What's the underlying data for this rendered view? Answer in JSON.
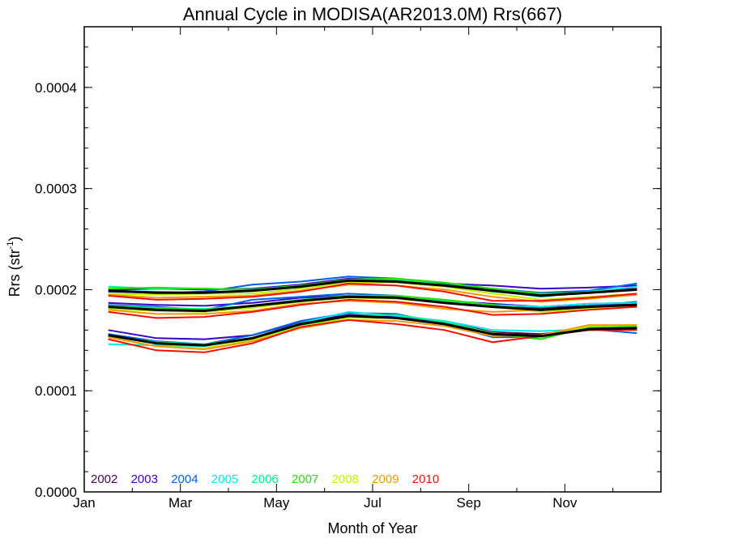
{
  "chart_data": {
    "type": "line",
    "title": "Annual Cycle in MODISA(AR2013.0M) Rrs(667)",
    "xlabel": "Month of Year",
    "ylabel_base": "Rrs (str",
    "ylabel_sup": "-1",
    "ylabel_close": ")",
    "xlim": [
      0,
      12
    ],
    "ylim": [
      0,
      0.00046
    ],
    "x_ticks": [
      {
        "value": 0,
        "label": "Jan"
      },
      {
        "value": 2,
        "label": "Mar"
      },
      {
        "value": 4,
        "label": "May"
      },
      {
        "value": 6,
        "label": "Jul"
      },
      {
        "value": 8,
        "label": "Sep"
      },
      {
        "value": 10,
        "label": "Nov"
      }
    ],
    "y_ticks": [
      {
        "value": 0,
        "label": "0.0000"
      },
      {
        "value": 0.0001,
        "label": "0.0001"
      },
      {
        "value": 0.0002,
        "label": "0.0002"
      },
      {
        "value": 0.0003,
        "label": "0.0003"
      },
      {
        "value": 0.0004,
        "label": "0.0004"
      }
    ],
    "legend": [
      {
        "name": "2002",
        "color": "#4b0055"
      },
      {
        "name": "2003",
        "color": "#3a00c8"
      },
      {
        "name": "2004",
        "color": "#0060e8"
      },
      {
        "name": "2005",
        "color": "#00e8e8"
      },
      {
        "name": "2006",
        "color": "#00f08a"
      },
      {
        "name": "2007",
        "color": "#22e000"
      },
      {
        "name": "2008",
        "color": "#c0f000"
      },
      {
        "name": "2009",
        "color": "#f09a00"
      },
      {
        "name": "2010",
        "color": "#f01000"
      }
    ],
    "x": [
      0.5,
      1.5,
      2.5,
      3.5,
      4.5,
      5.5,
      6.5,
      7.5,
      8.5,
      9.5,
      10.5,
      11.5
    ],
    "series": [
      {
        "year": "2002",
        "group": "high",
        "color": "#4b0055",
        "values": [
          null,
          null,
          null,
          null,
          null,
          0.00021,
          0.000208,
          0.000205,
          0.0002,
          0.000195,
          0.000198,
          0.000201
        ]
      },
      {
        "year": "2003",
        "group": "high",
        "color": "#3a00c8",
        "values": [
          0.0002,
          0.000201,
          0.0002,
          0.000201,
          0.000205,
          0.000211,
          0.00021,
          0.000206,
          0.000204,
          0.000201,
          0.000202,
          0.000204
        ]
      },
      {
        "year": "2004",
        "group": "high",
        "color": "#0060e8",
        "values": [
          0.000198,
          0.000197,
          0.000198,
          0.000205,
          0.000208,
          0.000213,
          0.000211,
          0.000204,
          0.000201,
          0.000197,
          0.000199,
          0.000206
        ]
      },
      {
        "year": "2005",
        "group": "high",
        "color": "#00e8e8",
        "values": [
          0.000199,
          0.000198,
          0.000197,
          0.000199,
          0.000204,
          0.000209,
          0.000208,
          0.000205,
          0.000199,
          0.000193,
          0.000198,
          0.000203
        ]
      },
      {
        "year": "2006",
        "group": "high",
        "color": "#00f08a",
        "values": [
          0.000203,
          0.000201,
          0.000201,
          0.0002,
          0.000204,
          0.000209,
          0.00021,
          0.000205,
          0.000198,
          0.000194,
          0.000198,
          0.0002
        ]
      },
      {
        "year": "2007",
        "group": "high",
        "color": "#22e000",
        "values": [
          0.000201,
          0.000202,
          0.000201,
          0.0002,
          0.000204,
          0.00021,
          0.000211,
          0.000207,
          0.000201,
          0.000196,
          0.000197,
          0.0002
        ]
      },
      {
        "year": "2008",
        "group": "high",
        "color": "#c0f000",
        "values": [
          0.000196,
          0.000195,
          0.000196,
          0.000196,
          0.000201,
          0.000207,
          0.000207,
          0.000203,
          0.000196,
          0.00019,
          0.000193,
          0.000196
        ]
      },
      {
        "year": "2009",
        "group": "high",
        "color": "#f09a00",
        "values": [
          0.000195,
          0.000192,
          0.000193,
          0.000194,
          0.000199,
          0.000205,
          0.000204,
          0.0002,
          0.000193,
          0.000188,
          0.000191,
          0.000195
        ]
      },
      {
        "year": "2010",
        "group": "high",
        "color": "#f01000",
        "values": [
          0.000194,
          0.00019,
          0.000191,
          0.000193,
          0.000198,
          0.000206,
          0.000204,
          0.000198,
          0.000189,
          0.000189,
          0.000192,
          0.000196
        ]
      },
      {
        "year": "2002",
        "group": "mid",
        "color": "#4b0055",
        "values": [
          null,
          null,
          null,
          null,
          null,
          0.000193,
          0.000192,
          0.000188,
          0.000185,
          0.000182,
          0.000184,
          0.000186
        ]
      },
      {
        "year": "2003",
        "group": "mid",
        "color": "#3a00c8",
        "values": [
          0.000187,
          0.000185,
          0.000184,
          0.000187,
          0.000192,
          0.000194,
          0.000193,
          0.000189,
          0.000186,
          0.000183,
          0.000186,
          0.000187
        ]
      },
      {
        "year": "2004",
        "group": "mid",
        "color": "#0060e8",
        "values": [
          0.000185,
          0.000183,
          0.00018,
          0.00019,
          0.000193,
          0.000196,
          0.000194,
          0.000188,
          0.000184,
          0.00018,
          0.000184,
          0.000188
        ]
      },
      {
        "year": "2005",
        "group": "mid",
        "color": "#00e8e8",
        "values": [
          0.000182,
          0.000179,
          0.000179,
          0.000184,
          0.00019,
          0.000193,
          0.000192,
          0.000188,
          0.000185,
          0.000183,
          0.000186,
          0.000187
        ]
      },
      {
        "year": "2006",
        "group": "mid",
        "color": "#00f08a",
        "values": [
          0.000184,
          0.000182,
          0.000181,
          0.000184,
          0.00019,
          0.000194,
          0.000193,
          0.000189,
          0.000184,
          0.00018,
          0.000183,
          0.000185
        ]
      },
      {
        "year": "2007",
        "group": "mid",
        "color": "#22e000",
        "values": [
          0.000183,
          0.000181,
          0.00018,
          0.000183,
          0.000189,
          0.000194,
          0.000194,
          0.00019,
          0.000185,
          0.000179,
          0.000182,
          0.000184
        ]
      },
      {
        "year": "2008",
        "group": "mid",
        "color": "#c0f000",
        "values": [
          0.000181,
          0.000179,
          0.000178,
          0.000182,
          0.000188,
          0.000192,
          0.000191,
          0.000187,
          0.000183,
          0.000178,
          0.000181,
          0.000183
        ]
      },
      {
        "year": "2009",
        "group": "mid",
        "color": "#f09a00",
        "values": [
          0.00018,
          0.000176,
          0.000176,
          0.000179,
          0.000186,
          0.000189,
          0.000187,
          0.000181,
          0.000178,
          0.00018,
          0.000183,
          0.000184
        ]
      },
      {
        "year": "2010",
        "group": "mid",
        "color": "#f01000",
        "values": [
          0.000178,
          0.000172,
          0.000173,
          0.000178,
          0.000185,
          0.00019,
          0.000188,
          0.000183,
          0.000175,
          0.000176,
          0.00018,
          0.000183
        ]
      },
      {
        "year": "2002",
        "group": "low",
        "color": "#4b0055",
        "values": [
          null,
          null,
          null,
          null,
          null,
          0.000175,
          0.000174,
          0.000168,
          0.000158,
          0.000156,
          0.000161,
          0.000163
        ]
      },
      {
        "year": "2003",
        "group": "low",
        "color": "#3a00c8",
        "values": [
          0.00016,
          0.000152,
          0.000151,
          0.000155,
          0.000168,
          0.000175,
          0.000173,
          0.000167,
          0.000157,
          0.000154,
          0.00016,
          0.000161
        ]
      },
      {
        "year": "2004",
        "group": "low",
        "color": "#0060e8",
        "values": [
          0.000156,
          0.000149,
          0.000146,
          0.000155,
          0.000169,
          0.000177,
          0.000176,
          0.000166,
          0.000153,
          0.000153,
          0.000161,
          0.000157
        ]
      },
      {
        "year": "2005",
        "group": "low",
        "color": "#00e8e8",
        "values": [
          0.000146,
          0.000145,
          0.000144,
          0.000152,
          0.000167,
          0.000178,
          0.000174,
          0.000169,
          0.00016,
          0.000159,
          0.000161,
          0.000163
        ]
      },
      {
        "year": "2006",
        "group": "low",
        "color": "#00f08a",
        "values": [
          0.000155,
          0.000148,
          0.000146,
          0.000152,
          0.000166,
          0.000174,
          0.000175,
          0.000168,
          0.000157,
          0.000154,
          0.000162,
          0.000164
        ]
      },
      {
        "year": "2007",
        "group": "low",
        "color": "#22e000",
        "values": [
          0.000154,
          0.000147,
          0.000145,
          0.000151,
          0.000165,
          0.000173,
          0.000172,
          0.000166,
          0.000156,
          0.000151,
          0.000163,
          0.000163
        ]
      },
      {
        "year": "2008",
        "group": "low",
        "color": "#c0f000",
        "values": [
          0.000153,
          0.000144,
          0.000142,
          0.00015,
          0.000163,
          0.000172,
          0.000172,
          0.000166,
          0.000157,
          0.000153,
          0.000164,
          0.000165
        ]
      },
      {
        "year": "2009",
        "group": "low",
        "color": "#f09a00",
        "values": [
          0.000153,
          0.000144,
          0.000141,
          0.000149,
          0.000162,
          0.00017,
          0.000169,
          0.000164,
          0.000154,
          0.000155,
          0.000165,
          0.000165
        ]
      },
      {
        "year": "2010",
        "group": "low",
        "color": "#f01000",
        "values": [
          0.000151,
          0.00014,
          0.000138,
          0.000147,
          0.000163,
          0.00017,
          0.000166,
          0.00016,
          0.000148,
          0.000154,
          0.00016,
          0.00016
        ]
      }
    ],
    "mean_series": [
      {
        "group": "high",
        "color": "#000000",
        "values": [
          0.000199,
          0.000197,
          0.000197,
          0.000199,
          0.000203,
          0.000209,
          0.000208,
          0.000204,
          0.000199,
          0.000194,
          0.000197,
          0.0002
        ]
      },
      {
        "group": "mid",
        "color": "#000000",
        "values": [
          0.000183,
          0.00018,
          0.000179,
          0.000184,
          0.000189,
          0.000193,
          0.000192,
          0.000187,
          0.000183,
          0.00018,
          0.000183,
          0.000185
        ]
      },
      {
        "group": "low",
        "color": "#000000",
        "values": [
          0.000155,
          0.000147,
          0.000145,
          0.000152,
          0.000166,
          0.000174,
          0.000172,
          0.000166,
          0.000156,
          0.000154,
          0.000161,
          0.000162
        ]
      }
    ]
  }
}
